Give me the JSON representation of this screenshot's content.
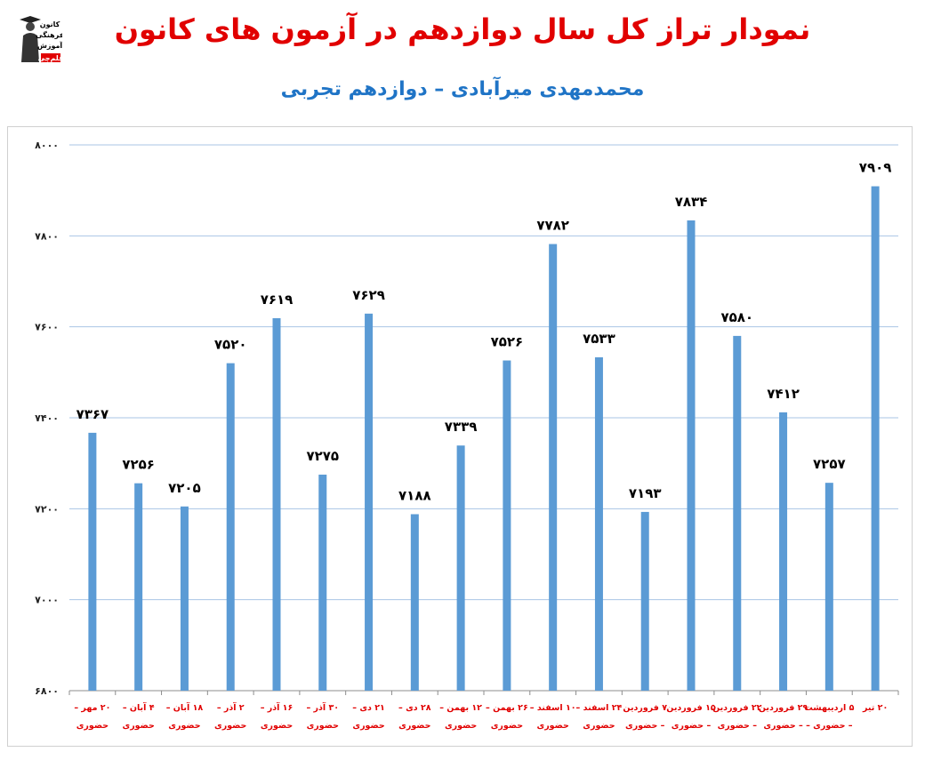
{
  "header": {
    "title": "نمودار تراز کل سال دوازدهم در آزمون های کانون",
    "subtitle": "محمدمهدی میرآبادی – دوازدهم تجربی",
    "logo_lines": [
      "کانون",
      "فرهنگی",
      "آموزش",
      "قلم‌چی"
    ]
  },
  "colors": {
    "bar": "#5b9bd5",
    "title": "#e10000",
    "subtitle": "#1f74c6",
    "category_label": "#e10000",
    "grid": "#a9c4e4"
  },
  "chart_data": {
    "type": "bar",
    "ylim": [
      6800,
      8000
    ],
    "yticks": [
      6800,
      7000,
      7200,
      7400,
      7600,
      7800,
      8000
    ],
    "ytick_labels": [
      "۶۸۰۰",
      "۷۰۰۰",
      "۷۲۰۰",
      "۷۴۰۰",
      "۷۶۰۰",
      "۷۸۰۰",
      "۸۰۰۰"
    ],
    "grid": true,
    "categories": [
      [
        "۲۰ مهر –",
        "حضوری"
      ],
      [
        "۴ آبان –",
        "حضوری"
      ],
      [
        "۱۸ آبان –",
        "حضوری"
      ],
      [
        "۲ آذر –",
        "حضوری"
      ],
      [
        "۱۶ آذر –",
        "حضوری"
      ],
      [
        "۳۰ آذر –",
        "حضوری"
      ],
      [
        "۲۱ دی –",
        "حضوری"
      ],
      [
        "۲۸ دی –",
        "حضوری"
      ],
      [
        "۱۲ بهمن –",
        "حضوری"
      ],
      [
        "۲۶ بهمن –",
        "حضوری"
      ],
      [
        "۱۰ اسفند –",
        "حضوری"
      ],
      [
        "۲۴ اسفند –",
        "حضوری"
      ],
      [
        "۷ فروردین",
        "– حضوری"
      ],
      [
        "۱۵ فروردین",
        "– حضوری"
      ],
      [
        "۲۲ فروردین",
        "– حضوری"
      ],
      [
        "۲۹ فروردین",
        "– حضوری"
      ],
      [
        "۵ اردیبهشت",
        "– حضوری –"
      ],
      [
        "۲۰ تیر",
        ""
      ]
    ],
    "values": [
      7367,
      7256,
      7205,
      7520,
      7619,
      7275,
      7629,
      7188,
      7339,
      7526,
      7782,
      7533,
      7193,
      7834,
      7580,
      7412,
      7257,
      7909
    ],
    "value_labels": [
      "۷۳۶۷",
      "۷۲۵۶",
      "۷۲۰۵",
      "۷۵۲۰",
      "۷۶۱۹",
      "۷۲۷۵",
      "۷۶۲۹",
      "۷۱۸۸",
      "۷۳۳۹",
      "۷۵۲۶",
      "۷۷۸۲",
      "۷۵۳۳",
      "۷۱۹۳",
      "۷۸۳۴",
      "۷۵۸۰",
      "۷۴۱۲",
      "۷۲۵۷",
      "۷۹۰۹"
    ]
  }
}
